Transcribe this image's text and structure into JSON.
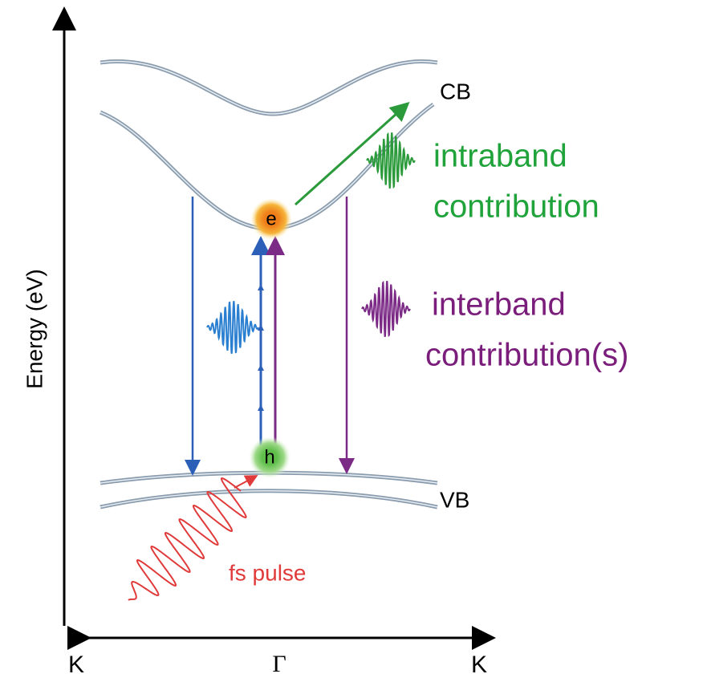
{
  "axes": {
    "y_label": "Energy (eV)",
    "x_labels": [
      "K",
      "Γ",
      "K"
    ]
  },
  "bands": {
    "conduction": "CB",
    "valence": "VB"
  },
  "carriers": {
    "electron": "e",
    "hole": "h"
  },
  "pulse": "fs pulse",
  "legend": {
    "intraband": [
      "intraband",
      "contribution"
    ],
    "interband": [
      "interband",
      "contribution(s)"
    ]
  }
}
